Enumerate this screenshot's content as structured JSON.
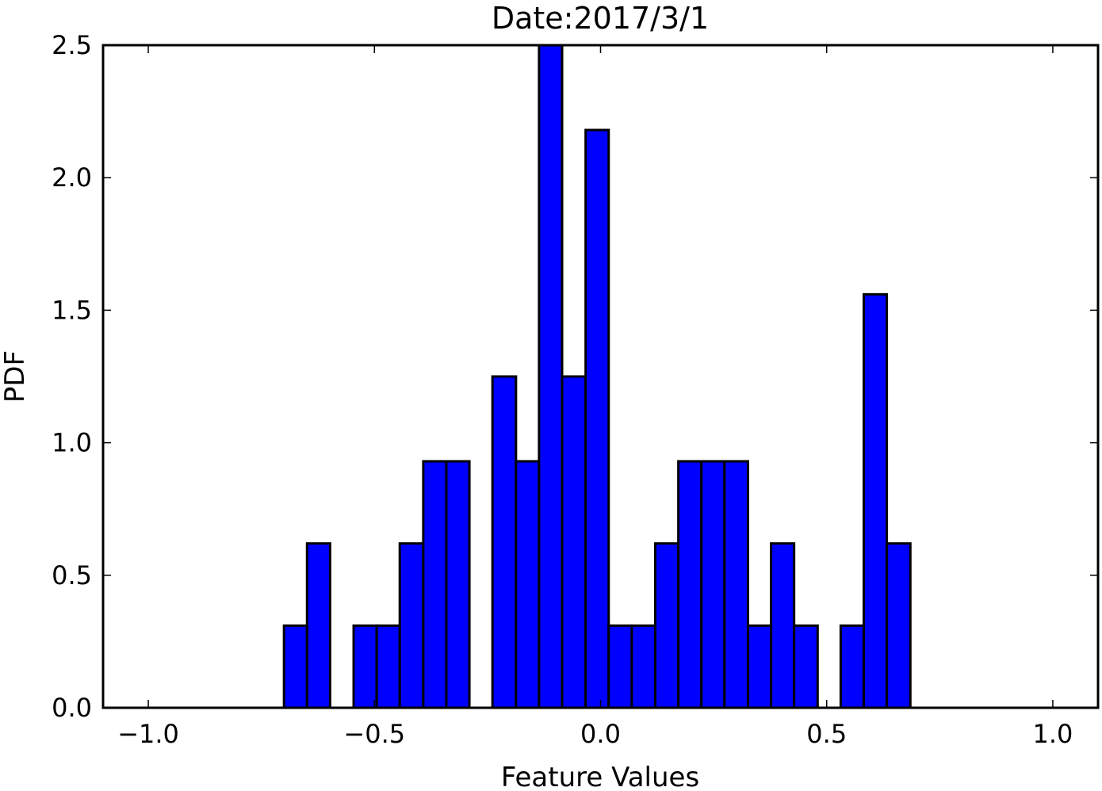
{
  "chart_data": {
    "type": "bar",
    "subtype": "histogram",
    "title": "Date:2017/3/1",
    "xlabel": "Feature Values",
    "ylabel": "PDF",
    "xlim": [
      -1.1,
      1.1
    ],
    "ylim": [
      0.0,
      2.5
    ],
    "x_ticks": [
      -1.0,
      -0.5,
      0.0,
      0.5,
      1.0
    ],
    "x_tick_labels": [
      "−1.0",
      "−0.5",
      "0.0",
      "0.5",
      "1.0"
    ],
    "y_ticks": [
      0.0,
      0.5,
      1.0,
      1.5,
      2.0,
      2.5
    ],
    "y_tick_labels": [
      "0.0",
      "0.5",
      "1.0",
      "1.5",
      "2.0",
      "2.5"
    ],
    "bin_edges": [
      -0.7,
      -0.649,
      -0.598,
      -0.546,
      -0.495,
      -0.444,
      -0.392,
      -0.341,
      -0.29,
      -0.239,
      -0.187,
      -0.136,
      -0.085,
      -0.033,
      0.018,
      0.069,
      0.121,
      0.172,
      0.223,
      0.274,
      0.326,
      0.377,
      0.428,
      0.48,
      0.531,
      0.582,
      0.633,
      0.685
    ],
    "values": [
      0.31,
      0.62,
      0.0,
      0.31,
      0.31,
      0.62,
      0.93,
      0.93,
      0.0,
      1.25,
      0.93,
      2.5,
      1.25,
      2.18,
      0.31,
      0.31,
      0.62,
      0.93,
      0.93,
      0.93,
      0.31,
      0.62,
      0.31,
      0.0,
      0.31,
      1.56,
      0.62
    ],
    "grid": false,
    "colors": {
      "bar": "#0000ff",
      "edge": "#000000"
    }
  }
}
